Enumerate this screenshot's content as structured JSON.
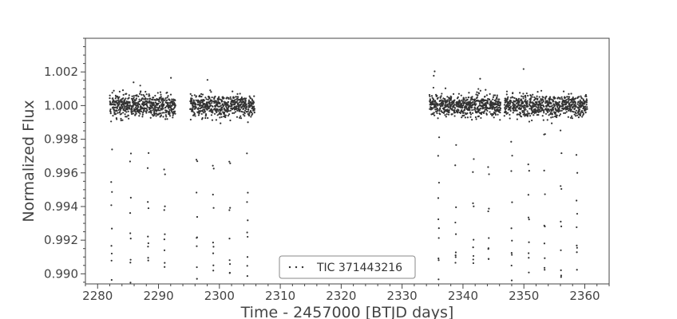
{
  "chart_data": {
    "type": "scatter",
    "title": "",
    "xlabel": "Time - 2457000 [BTJD days]",
    "ylabel": "Normalized Flux",
    "xlim": [
      2278,
      2364
    ],
    "ylim": [
      0.9894,
      1.004
    ],
    "xticks": [
      2280,
      2290,
      2300,
      2310,
      2320,
      2330,
      2340,
      2350,
      2360
    ],
    "xtick_labels": [
      "2280",
      "2290",
      "2300",
      "2310",
      "2320",
      "2330",
      "2340",
      "2350",
      "2360"
    ],
    "yticks": [
      0.99,
      0.992,
      0.994,
      0.996,
      0.998,
      1.0,
      1.002
    ],
    "ytick_labels": [
      "0.990",
      "0.992",
      "0.994",
      "0.996",
      "0.998",
      "1.000",
      "1.002"
    ],
    "grid": false,
    "legend_position": "bottom-center",
    "colors": {
      "points": "#333333",
      "axes": "#444444"
    },
    "series": [
      {
        "name": "TIC 371443216",
        "baseline_flux": 1.0,
        "scatter_std": 0.0006,
        "observing_segments": [
          [
            2282.0,
            2292.8
          ],
          [
            2295.2,
            2305.8
          ],
          [
            2334.5,
            2346.2
          ],
          [
            2346.8,
            2360.4
          ]
        ],
        "eclipse_times": [
          2282.3,
          2285.4,
          2288.3,
          2291.0,
          2296.3,
          2299.0,
          2301.7,
          2304.6,
          2336.0,
          2338.8,
          2341.7,
          2344.2,
          2348.0,
          2350.8,
          2353.4,
          2356.1,
          2358.7
        ],
        "eclipse_min_flux": 0.9905,
        "notes": ""
      }
    ]
  }
}
